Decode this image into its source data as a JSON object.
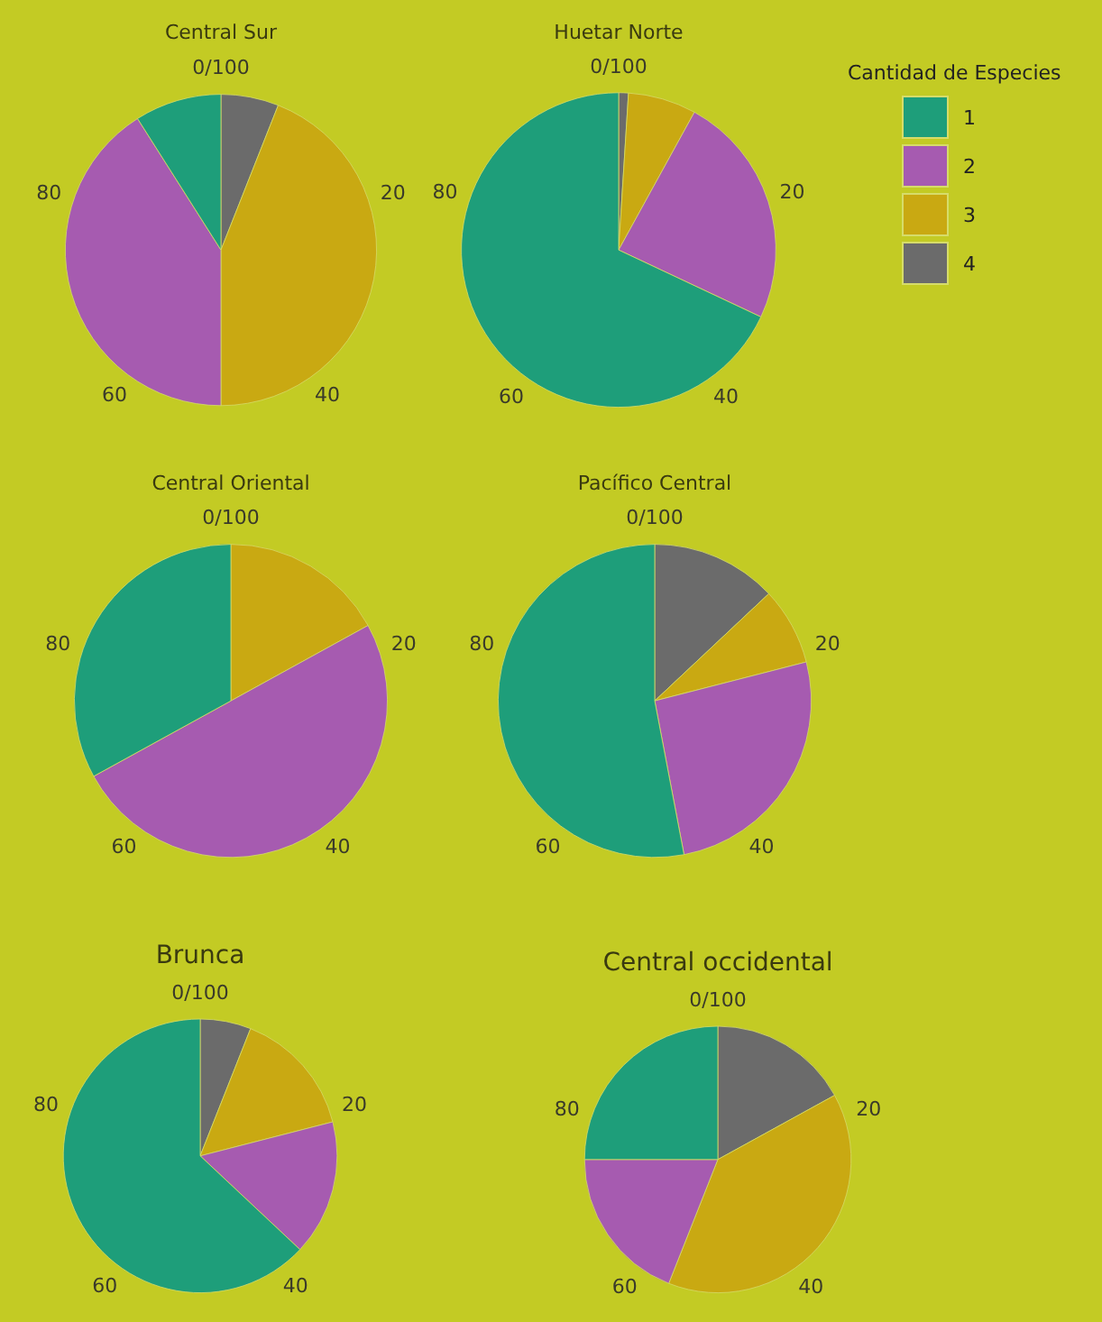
{
  "chart_data": [
    {
      "type": "pie",
      "title": "Central Sur",
      "categories": [
        null,
        null,
        null,
        null
      ],
      "values": [
        9,
        41,
        44,
        6
      ],
      "colors": [
        "#1e9e7a",
        "#a65bb0",
        "#c9a912",
        "#6b6b6b"
      ],
      "annotations": [
        "0/100",
        "20",
        "40",
        "60",
        "80"
      ]
    },
    {
      "type": "pie",
      "title": "Huetar Norte",
      "categories": [
        "1",
        "2",
        "3",
        "4"
      ],
      "values": [
        68,
        24,
        7,
        1
      ],
      "colors": [
        "#1e9e7a",
        "#a65bb0",
        "#c9a912",
        "#6b6b6b"
      ],
      "annotations": [
        "0/100",
        "20",
        "40",
        "60",
        "80"
      ],
      "legend": "right",
      "legend_title": "Cantidad de Especies"
    },
    {
      "type": "pie",
      "title": "Central Oriental",
      "categories": [
        null,
        null,
        null,
        null
      ],
      "values": [
        33,
        50,
        17,
        0
      ],
      "colors": [
        "#1e9e7a",
        "#a65bb0",
        "#c9a912",
        "#6b6b6b"
      ],
      "annotations": [
        "0/100",
        "20",
        "40",
        "60",
        "80"
      ]
    },
    {
      "type": "pie",
      "title": "Pacífico Central",
      "categories": [
        null,
        null,
        null,
        null
      ],
      "values": [
        53,
        26,
        8,
        13
      ],
      "colors": [
        "#1e9e7a",
        "#a65bb0",
        "#c9a912",
        "#6b6b6b"
      ],
      "annotations": [
        "0/100",
        "20",
        "40",
        "60",
        "80"
      ]
    },
    {
      "type": "pie",
      "title": "Brunca",
      "categories": [
        null,
        null,
        null,
        null
      ],
      "values": [
        63,
        16,
        15,
        6
      ],
      "colors": [
        "#1e9e7a",
        "#a65bb0",
        "#c9a912",
        "#6b6b6b"
      ],
      "annotations": [
        "0/100",
        "20",
        "40",
        "60",
        "80"
      ]
    },
    {
      "type": "pie",
      "title": "Central occidental",
      "categories": [
        null,
        null,
        null,
        null
      ],
      "values": [
        25,
        19,
        39,
        17
      ],
      "colors": [
        "#1e9e7a",
        "#a65bb0",
        "#c9a912",
        "#6b6b6b"
      ],
      "annotations": [
        "0/100",
        "20",
        "40",
        "60",
        "80"
      ]
    }
  ]
}
